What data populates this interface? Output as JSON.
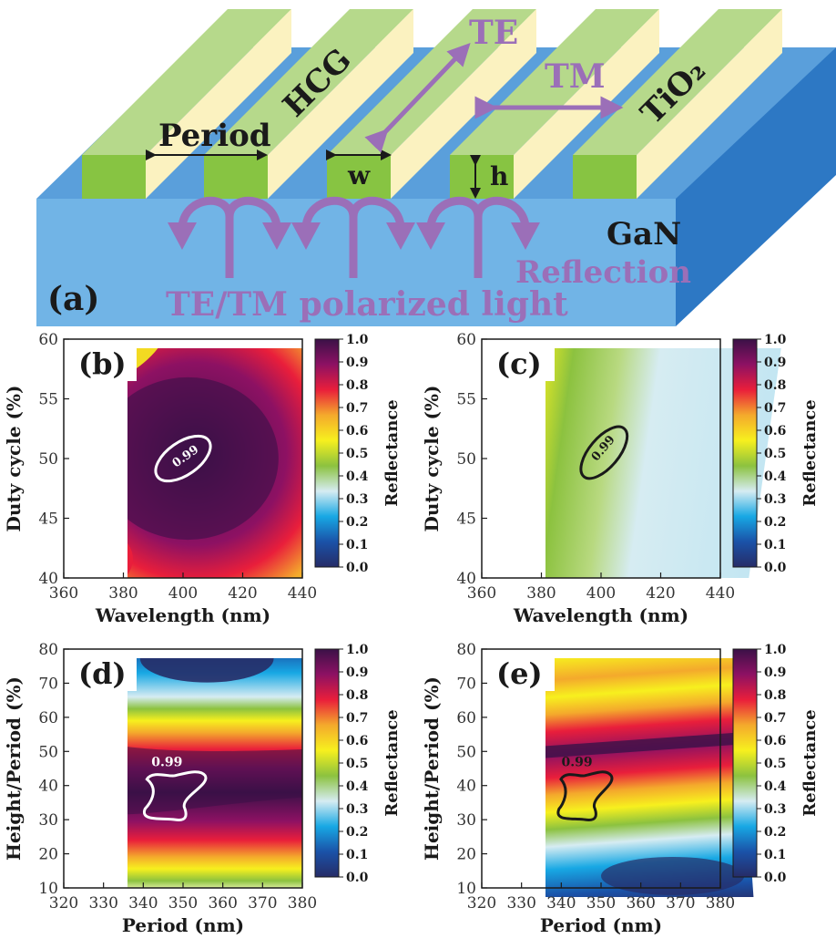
{
  "panel_a": {
    "panel_label": "(a)",
    "hcg": "HCG",
    "te": "TE",
    "tm": "TM",
    "tio2": "TiO₂",
    "period": "Period",
    "w": "w",
    "h": "h",
    "gan": "GaN",
    "reflection": "Reflection",
    "light": "TE/TM polarized light"
  },
  "colorbar": {
    "label": "Reflectance",
    "ticks": [
      "0.0",
      "0.1",
      "0.2",
      "0.3",
      "0.4",
      "0.5",
      "0.6",
      "0.7",
      "0.8",
      "0.9",
      "1.0"
    ],
    "stops": [
      "#262c67",
      "#1a52a8",
      "#18a8e4",
      "#d6ecf2",
      "#8cc23f",
      "#f7f01e",
      "#f4a92c",
      "#e91e3b",
      "#8d1163",
      "#3b1147"
    ]
  },
  "chart_data": [
    {
      "type": "heatmap",
      "panel": "(b)",
      "xlabel": "Wavelength (nm)",
      "ylabel": "Duty cycle (%)",
      "xlim": [
        360,
        440
      ],
      "ylim": [
        40,
        60
      ],
      "xticks": [
        "360",
        "380",
        "400",
        "420",
        "440"
      ],
      "yticks": [
        "40",
        "45",
        "50",
        "55",
        "60"
      ],
      "contour_label": "0.99",
      "contour_color": "#ffffff",
      "max_region": {
        "wavelength": [
          390,
          410
        ],
        "duty_cycle": [
          47.5,
          52.5
        ]
      }
    },
    {
      "type": "heatmap",
      "panel": "(c)",
      "xlabel": "Wavelength (nm)",
      "ylabel": "Duty cycle (%)",
      "xlim": [
        360,
        440
      ],
      "ylim": [
        40,
        60
      ],
      "xticks": [
        "360",
        "380",
        "400",
        "420",
        "440"
      ],
      "yticks": [
        "40",
        "45",
        "50",
        "55",
        "60"
      ],
      "contour_label": "0.99",
      "contour_color": "#1a1a1a",
      "max_region": {
        "wavelength": [
          392,
          410
        ],
        "duty_cycle": [
          48,
          53
        ]
      }
    },
    {
      "type": "heatmap",
      "panel": "(d)",
      "xlabel": "Period (nm)",
      "ylabel": "Height/Period (%)",
      "xlim": [
        320,
        380
      ],
      "ylim": [
        10,
        80
      ],
      "xticks": [
        "320",
        "330",
        "340",
        "350",
        "360",
        "370",
        "380"
      ],
      "yticks": [
        "10",
        "20",
        "30",
        "40",
        "50",
        "60",
        "70",
        "80"
      ],
      "contour_label": "0.99",
      "contour_color": "#ffffff",
      "max_region": {
        "period": [
          340,
          356
        ],
        "height_period": [
          30,
          44
        ]
      }
    },
    {
      "type": "heatmap",
      "panel": "(e)",
      "xlabel": "Period (nm)",
      "ylabel": "Height/Period (%)",
      "xlim": [
        320,
        380
      ],
      "ylim": [
        10,
        80
      ],
      "xticks": [
        "320",
        "330",
        "340",
        "350",
        "360",
        "370",
        "380"
      ],
      "yticks": [
        "10",
        "20",
        "30",
        "40",
        "50",
        "60",
        "70",
        "80"
      ],
      "contour_label": "0.99",
      "contour_color": "#1a1a1a",
      "max_region": {
        "period": [
          339,
          353
        ],
        "height_period": [
          30,
          44
        ]
      }
    }
  ]
}
